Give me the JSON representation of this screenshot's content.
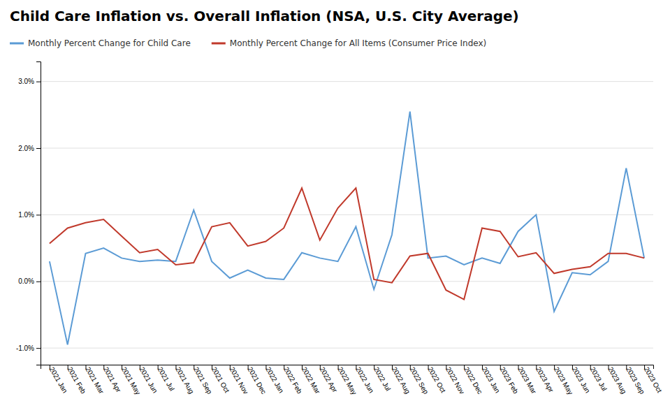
{
  "chart_data": {
    "type": "line",
    "title": "Child Care Inflation vs. Overall Inflation (NSA, U.S. City Average)",
    "categories": [
      "2021 Jan",
      "2021 Feb",
      "2021 Mar",
      "2021 Apr",
      "2021 May",
      "2021 Jun",
      "2021 Jul",
      "2021 Aug",
      "2021 Sep",
      "2021 Oct",
      "2021 Nov",
      "2021 Dec",
      "2022 Jan",
      "2022 Feb",
      "2022 Mar",
      "2022 Apr",
      "2022 May",
      "2022 Jun",
      "2022 Jul",
      "2022 Aug",
      "2022 Sep",
      "2022 Oct",
      "2022 Nov",
      "2022 Dec",
      "2023 Jan",
      "2023 Feb",
      "2023 Mar",
      "2023 Apr",
      "2023 May",
      "2023 Jun",
      "2023 Jul",
      "2023 Aug",
      "2023 Sep",
      "2023 Oct"
    ],
    "series": [
      {
        "name": "Monthly Percent Change for Child Care",
        "color": "#5B9BD5",
        "values": [
          0.3,
          -0.95,
          0.42,
          0.5,
          0.35,
          0.3,
          0.32,
          0.3,
          1.07,
          0.3,
          0.05,
          0.17,
          0.05,
          0.03,
          0.43,
          0.35,
          0.3,
          0.82,
          -0.12,
          0.7,
          2.55,
          0.35,
          0.38,
          0.25,
          0.35,
          0.27,
          0.75,
          1.0,
          -0.45,
          0.13,
          0.1,
          0.3,
          1.7,
          0.35
        ]
      },
      {
        "name": "Monthly Percent Change for All Items (Consumer Price Index)",
        "color": "#C0392B",
        "values": [
          0.57,
          0.8,
          0.88,
          0.93,
          0.68,
          0.43,
          0.48,
          0.25,
          0.28,
          0.82,
          0.88,
          0.53,
          0.6,
          0.8,
          1.4,
          0.62,
          1.1,
          1.4,
          0.03,
          -0.02,
          0.38,
          0.42,
          -0.13,
          -0.27,
          0.8,
          0.75,
          0.37,
          0.43,
          0.12,
          0.18,
          0.22,
          0.42,
          0.42,
          0.35
        ]
      }
    ],
    "ylim": [
      -1.25,
      3.3
    ],
    "yticks": [
      {
        "value": -1.0,
        "label": "-1.0%"
      },
      {
        "value": 0.0,
        "label": "0.0%"
      },
      {
        "value": 1.0,
        "label": "1.0%"
      },
      {
        "value": 2.0,
        "label": "2.0%"
      },
      {
        "value": 3.0,
        "label": "3.0%"
      }
    ],
    "grid": true,
    "legend": "top"
  }
}
